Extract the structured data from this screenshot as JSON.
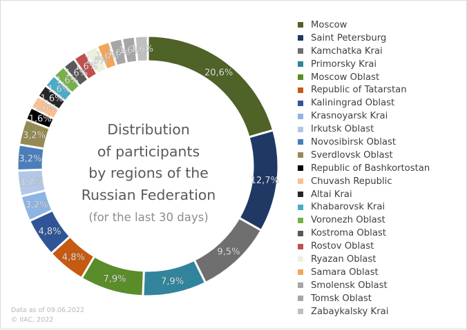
{
  "chart_data": {
    "type": "donut",
    "title": "Distribution of participants by regions of the Russian Federation",
    "title_lines": [
      "Distribution",
      "of participants",
      "by regions of the",
      "Russian Federation"
    ],
    "subtitle": "(for the last 30 days)",
    "legend_position": "right",
    "series": [
      {
        "values": [
          20.6,
          12.7,
          9.5,
          7.9,
          7.9,
          4.8,
          4.8,
          3.2,
          3.2,
          3.2,
          3.2,
          1.6,
          1.6,
          1.6,
          1.6,
          1.6,
          1.6,
          1.6,
          1.6,
          1.6,
          1.6,
          1.6,
          1.6
        ],
        "labels": [
          "20,6%",
          "12,7%",
          "9,5%",
          "7,9%",
          "7,9%",
          "4,8%",
          "4,8%",
          "3,2%",
          "3,2%",
          "3,2%",
          "3,2%",
          "1,6%",
          "1,6%",
          "1,6%",
          "1,6%",
          "1,6%",
          "1,6%",
          "1,6%",
          "1,6%",
          "1,6%",
          "1,6%",
          "1,6%",
          "1,6%"
        ]
      }
    ],
    "categories": [
      "Moscow",
      "Saint Petersburg",
      "Kamchatka Krai",
      "Primorsky Krai",
      "Moscow Oblast",
      "Republic of Tatarstan",
      "Kaliningrad Oblast",
      "Krasnoyarsk Krai",
      "Irkutsk Oblast",
      "Novosibirsk Oblast",
      "Sverdlovsk Oblast",
      "Republic of Bashkortostan",
      "Chuvash Republic",
      "Altai Krai",
      "Khabarovsk Krai",
      "Voronezh Oblast",
      "Kostroma Oblast",
      "Rostov Oblast",
      "Ryazan Oblast",
      "Samara Oblast",
      "Smolensk Oblast",
      "Tomsk Oblast",
      "Zabaykalsky Krai"
    ],
    "colors": [
      "#4f6228",
      "#1f3864",
      "#6f6f6f",
      "#31849b",
      "#5b8c2a",
      "#c55a11",
      "#2f5597",
      "#8eb4e3",
      "#b4c7e7",
      "#4a7ebb",
      "#948a54",
      "#000000",
      "#fac090",
      "#262626",
      "#4bacc6",
      "#77b04b",
      "#595959",
      "#c0504d",
      "#ebf1de",
      "#f2a65a",
      "#a6a6a6",
      "#a6a6a6",
      "#bfbfbf"
    ],
    "label_colors": [
      "#ffffff",
      "#ffffff",
      "#ffffff",
      "#ffffff",
      "#ffffff",
      "#ffffff",
      "#ffffff",
      "#ffffff",
      "#ffffff",
      "#ffffff",
      "#ffffff",
      "#ffffff",
      "#ffffff",
      "#ffffff",
      "#ffffff",
      "#ffffff",
      "#ffffff",
      "#ffffff",
      "#ffffff",
      "#ffffff",
      "#ffffff",
      "#ffffff",
      "#ffffff"
    ]
  },
  "footer": {
    "date_text": "Data as of 09.06.2022",
    "copyright": "© IIAC, 2022"
  }
}
